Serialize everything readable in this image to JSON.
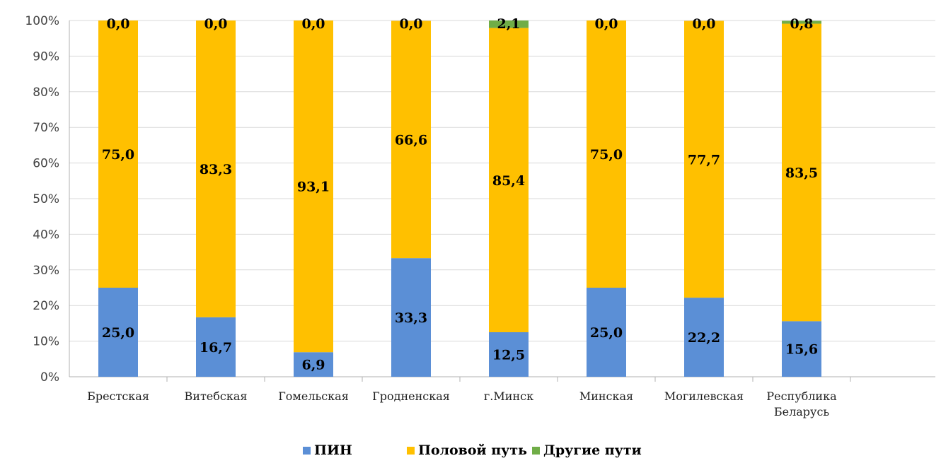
{
  "chart_data": {
    "type": "bar",
    "stacked": true,
    "categories": [
      [
        "Брестская"
      ],
      [
        "Витебская"
      ],
      [
        "Гомельская"
      ],
      [
        "Гродненская"
      ],
      [
        "г.Минск"
      ],
      [
        "Минская"
      ],
      [
        "Могилевская"
      ],
      [
        "Республика",
        "Беларусь"
      ]
    ],
    "series": [
      {
        "name": "ПИН",
        "color": "#5b8fd6",
        "values": [
          25.0,
          16.7,
          6.9,
          33.3,
          12.5,
          25.0,
          22.2,
          15.6
        ],
        "labels": [
          "25,0",
          "16,7",
          "6,9",
          "33,3",
          "12,5",
          "25,0",
          "22,2",
          "15,6"
        ]
      },
      {
        "name": "Половой путь",
        "color": "#ffc000",
        "values": [
          75.0,
          83.3,
          93.1,
          66.6,
          85.4,
          75.0,
          77.7,
          83.5
        ],
        "labels": [
          "75,0",
          "83,3",
          "93,1",
          "66,6",
          "85,4",
          "75,0",
          "77,7",
          "83,5"
        ]
      },
      {
        "name": "Другие пути",
        "color": "#70ad47",
        "values": [
          0.0,
          0.0,
          0.0,
          0.0,
          2.1,
          0.0,
          0.0,
          0.8
        ],
        "labels": [
          "0,0",
          "0,0",
          "0,0",
          "0,0",
          "2,1",
          "0,0",
          "0,0",
          "0,8"
        ]
      }
    ],
    "yticks": [
      "0%",
      "10%",
      "20%",
      "30%",
      "40%",
      "50%",
      "60%",
      "70%",
      "80%",
      "90%",
      "100%"
    ],
    "ylim": [
      0,
      100
    ],
    "grid": true,
    "legend": "bottom",
    "title": "",
    "xlabel": "",
    "ylabel": ""
  }
}
